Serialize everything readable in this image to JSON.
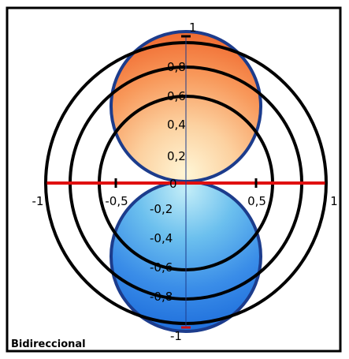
{
  "caption": "Bidireccional",
  "axis_labels": {
    "x_neg_1": "-1",
    "x_neg_half": "-0,5",
    "x_pos_half": "0,5",
    "x_pos_1": "1",
    "y_pos_1": "1",
    "y_neg_1": "-1"
  },
  "radial_labels": {
    "upper": [
      "0,8",
      "0,6",
      "0,4",
      "0,2"
    ],
    "center": "0",
    "lower": [
      "-0,2",
      "-0,4",
      "-0,6",
      "-0,8"
    ]
  },
  "colors": {
    "upper_lobe_outer": "#f06a30",
    "upper_lobe_inner": "#fff2c8",
    "lower_lobe_outer": "#1f73e0",
    "lower_lobe_inner": "#a8e2f5",
    "lobe_outline": "#1c3c8c",
    "horizontal_axis": "#e01010",
    "rings": "#000000"
  }
}
